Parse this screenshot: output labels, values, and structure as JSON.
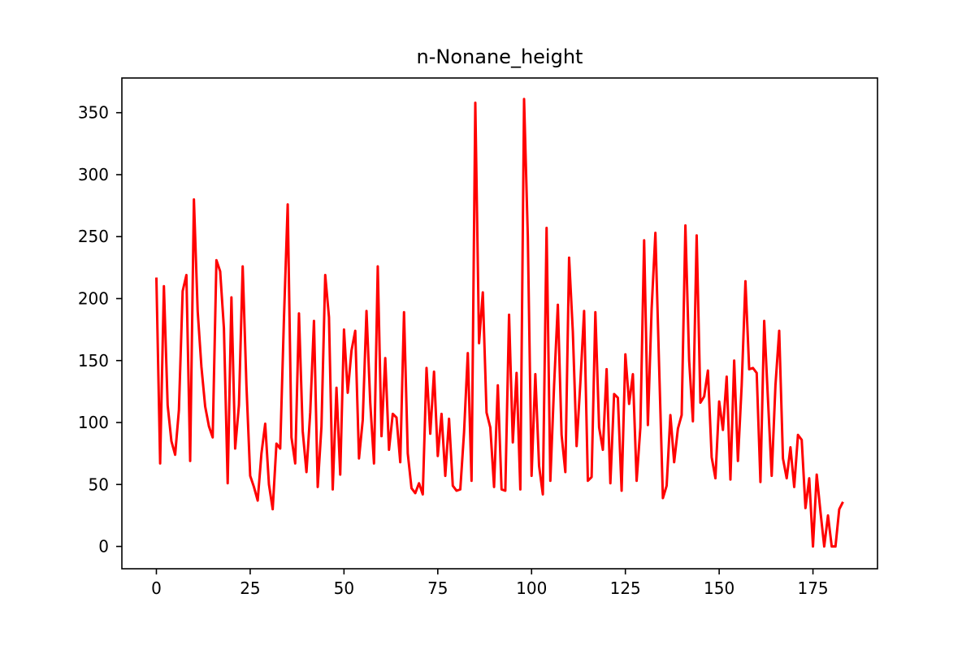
{
  "chart_data": {
    "type": "line",
    "title": "n-Nonane_height",
    "xlabel": "",
    "ylabel": "",
    "xlim": [
      -9.2,
      192.2
    ],
    "ylim": [
      -18,
      378
    ],
    "x_ticks": [
      0,
      25,
      50,
      75,
      100,
      125,
      150,
      175
    ],
    "y_ticks": [
      0,
      50,
      100,
      150,
      200,
      250,
      300,
      350
    ],
    "grid": false,
    "legend": "none",
    "series": [
      {
        "color": "#ff0000",
        "x_start": 0,
        "x_step": 1,
        "values": [
          217,
          67,
          210,
          114,
          85,
          74,
          110,
          206,
          219,
          69,
          280,
          190,
          145,
          113,
          97,
          88,
          231,
          222,
          176,
          51,
          201,
          79,
          114,
          226,
          130,
          57,
          48,
          37,
          75,
          99,
          50,
          30,
          83,
          79,
          184,
          276,
          88,
          67,
          188,
          93,
          60,
          108,
          182,
          48,
          97,
          219,
          185,
          46,
          128,
          58,
          175,
          124,
          158,
          174,
          71,
          102,
          190,
          116,
          67,
          226,
          89,
          152,
          78,
          107,
          104,
          68,
          189,
          75,
          47,
          43,
          51,
          42,
          144,
          91,
          141,
          73,
          107,
          57,
          103,
          49,
          45,
          46,
          92,
          156,
          53,
          358,
          164,
          205,
          108,
          96,
          48,
          130,
          46,
          45,
          187,
          84,
          140,
          46,
          361,
          250,
          57,
          139,
          65,
          42,
          257,
          53,
          130,
          195,
          90,
          60,
          233,
          173,
          81,
          132,
          190,
          53,
          56,
          189,
          96,
          78,
          143,
          51,
          123,
          120,
          45,
          155,
          115,
          139,
          53,
          96,
          247,
          98,
          192,
          253,
          145,
          39,
          49,
          106,
          68,
          95,
          106,
          259,
          150,
          101,
          251,
          116,
          121,
          142,
          72,
          55,
          117,
          94,
          137,
          54,
          150,
          69,
          130,
          214,
          143,
          144,
          140,
          52,
          182,
          119,
          57,
          130,
          174,
          71,
          55,
          80,
          48,
          90,
          86,
          31,
          55,
          0,
          58,
          28,
          0,
          25,
          0,
          0,
          30,
          36
        ]
      }
    ]
  }
}
